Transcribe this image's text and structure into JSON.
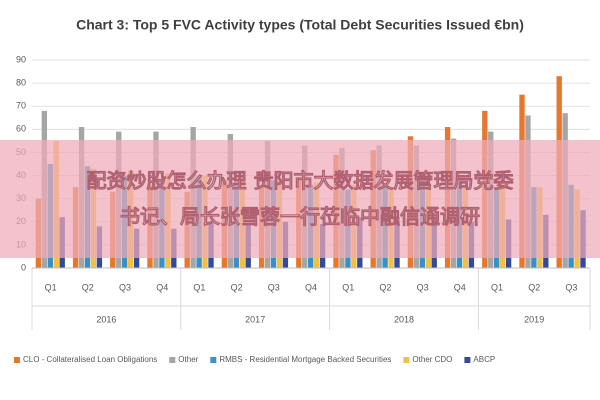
{
  "chart_data": {
    "type": "bar",
    "title": "Chart 3: Top 5 FVC Activity types (Total Debt Securities Issued €bn)",
    "category_groups": [
      {
        "name": "2016",
        "categories": [
          "Q1",
          "Q2",
          "Q3",
          "Q4"
        ]
      },
      {
        "name": "2017",
        "categories": [
          "Q1",
          "Q2",
          "Q3",
          "Q4"
        ]
      },
      {
        "name": "2018",
        "categories": [
          "Q1",
          "Q2",
          "Q3",
          "Q4"
        ]
      },
      {
        "name": "2019",
        "categories": [
          "Q1",
          "Q2",
          "Q3"
        ]
      }
    ],
    "series": [
      {
        "name": "CLO - Collateralised Loan Obligations",
        "color": "#e8772e",
        "values": [
          30,
          35,
          33,
          36,
          33,
          38,
          35,
          38,
          49,
          51,
          57,
          61,
          68,
          75,
          83
        ]
      },
      {
        "name": "Other",
        "color": "#a5a5a5",
        "values": [
          68,
          61,
          59,
          59,
          61,
          58,
          55,
          53,
          52,
          53,
          53,
          56,
          59,
          66,
          67
        ]
      },
      {
        "name": "RMBS - Residential Mortgage Backed Securities",
        "color": "#3a8fc4",
        "values": [
          45,
          44,
          40,
          38,
          40,
          37,
          38,
          36,
          34,
          35,
          36,
          37,
          35,
          35,
          36
        ]
      },
      {
        "name": "Other CDO",
        "color": "#f2c045",
        "values": [
          55,
          43,
          42,
          41,
          40,
          40,
          38,
          37,
          36,
          35,
          34,
          35,
          36,
          35,
          34
        ]
      },
      {
        "name": "ABCP",
        "color": "#34499c",
        "values": [
          22,
          18,
          17,
          17,
          20,
          19,
          20,
          19,
          22,
          22,
          21,
          20,
          21,
          23,
          25
        ]
      }
    ],
    "ylim": [
      0,
      90
    ],
    "yticks": [
      0,
      10,
      20,
      30,
      40,
      50,
      60,
      70,
      80,
      90
    ],
    "grid": true,
    "legend": "bottom"
  },
  "overlay": {
    "lines": [
      "配资炒股怎么办理 贵阳市大数据发展管理局党委",
      "书记、局长张雪蓉一行莅临中融信通调研"
    ]
  }
}
